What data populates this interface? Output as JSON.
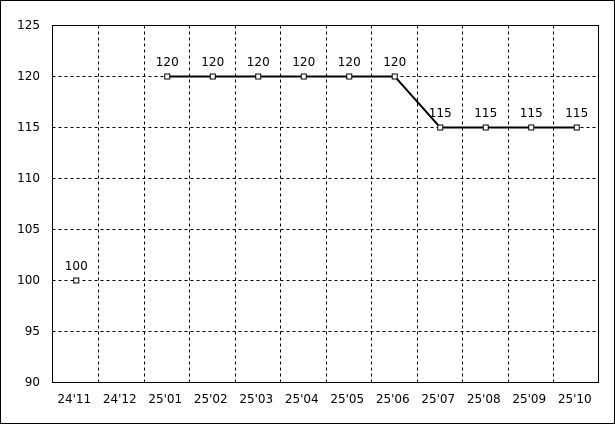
{
  "chart_data": {
    "type": "line",
    "categories": [
      "24'11",
      "24'12",
      "25'01",
      "25'02",
      "25'03",
      "25'04",
      "25'05",
      "25'06",
      "25'07",
      "25'08",
      "25'09",
      "25'10"
    ],
    "values": [
      100,
      null,
      120,
      120,
      120,
      120,
      120,
      120,
      115,
      115,
      115,
      115
    ],
    "color": "#000000",
    "ylim": [
      90,
      125
    ],
    "yticks": [
      90,
      95,
      100,
      105,
      110,
      115,
      120,
      125
    ],
    "grid": true
  }
}
